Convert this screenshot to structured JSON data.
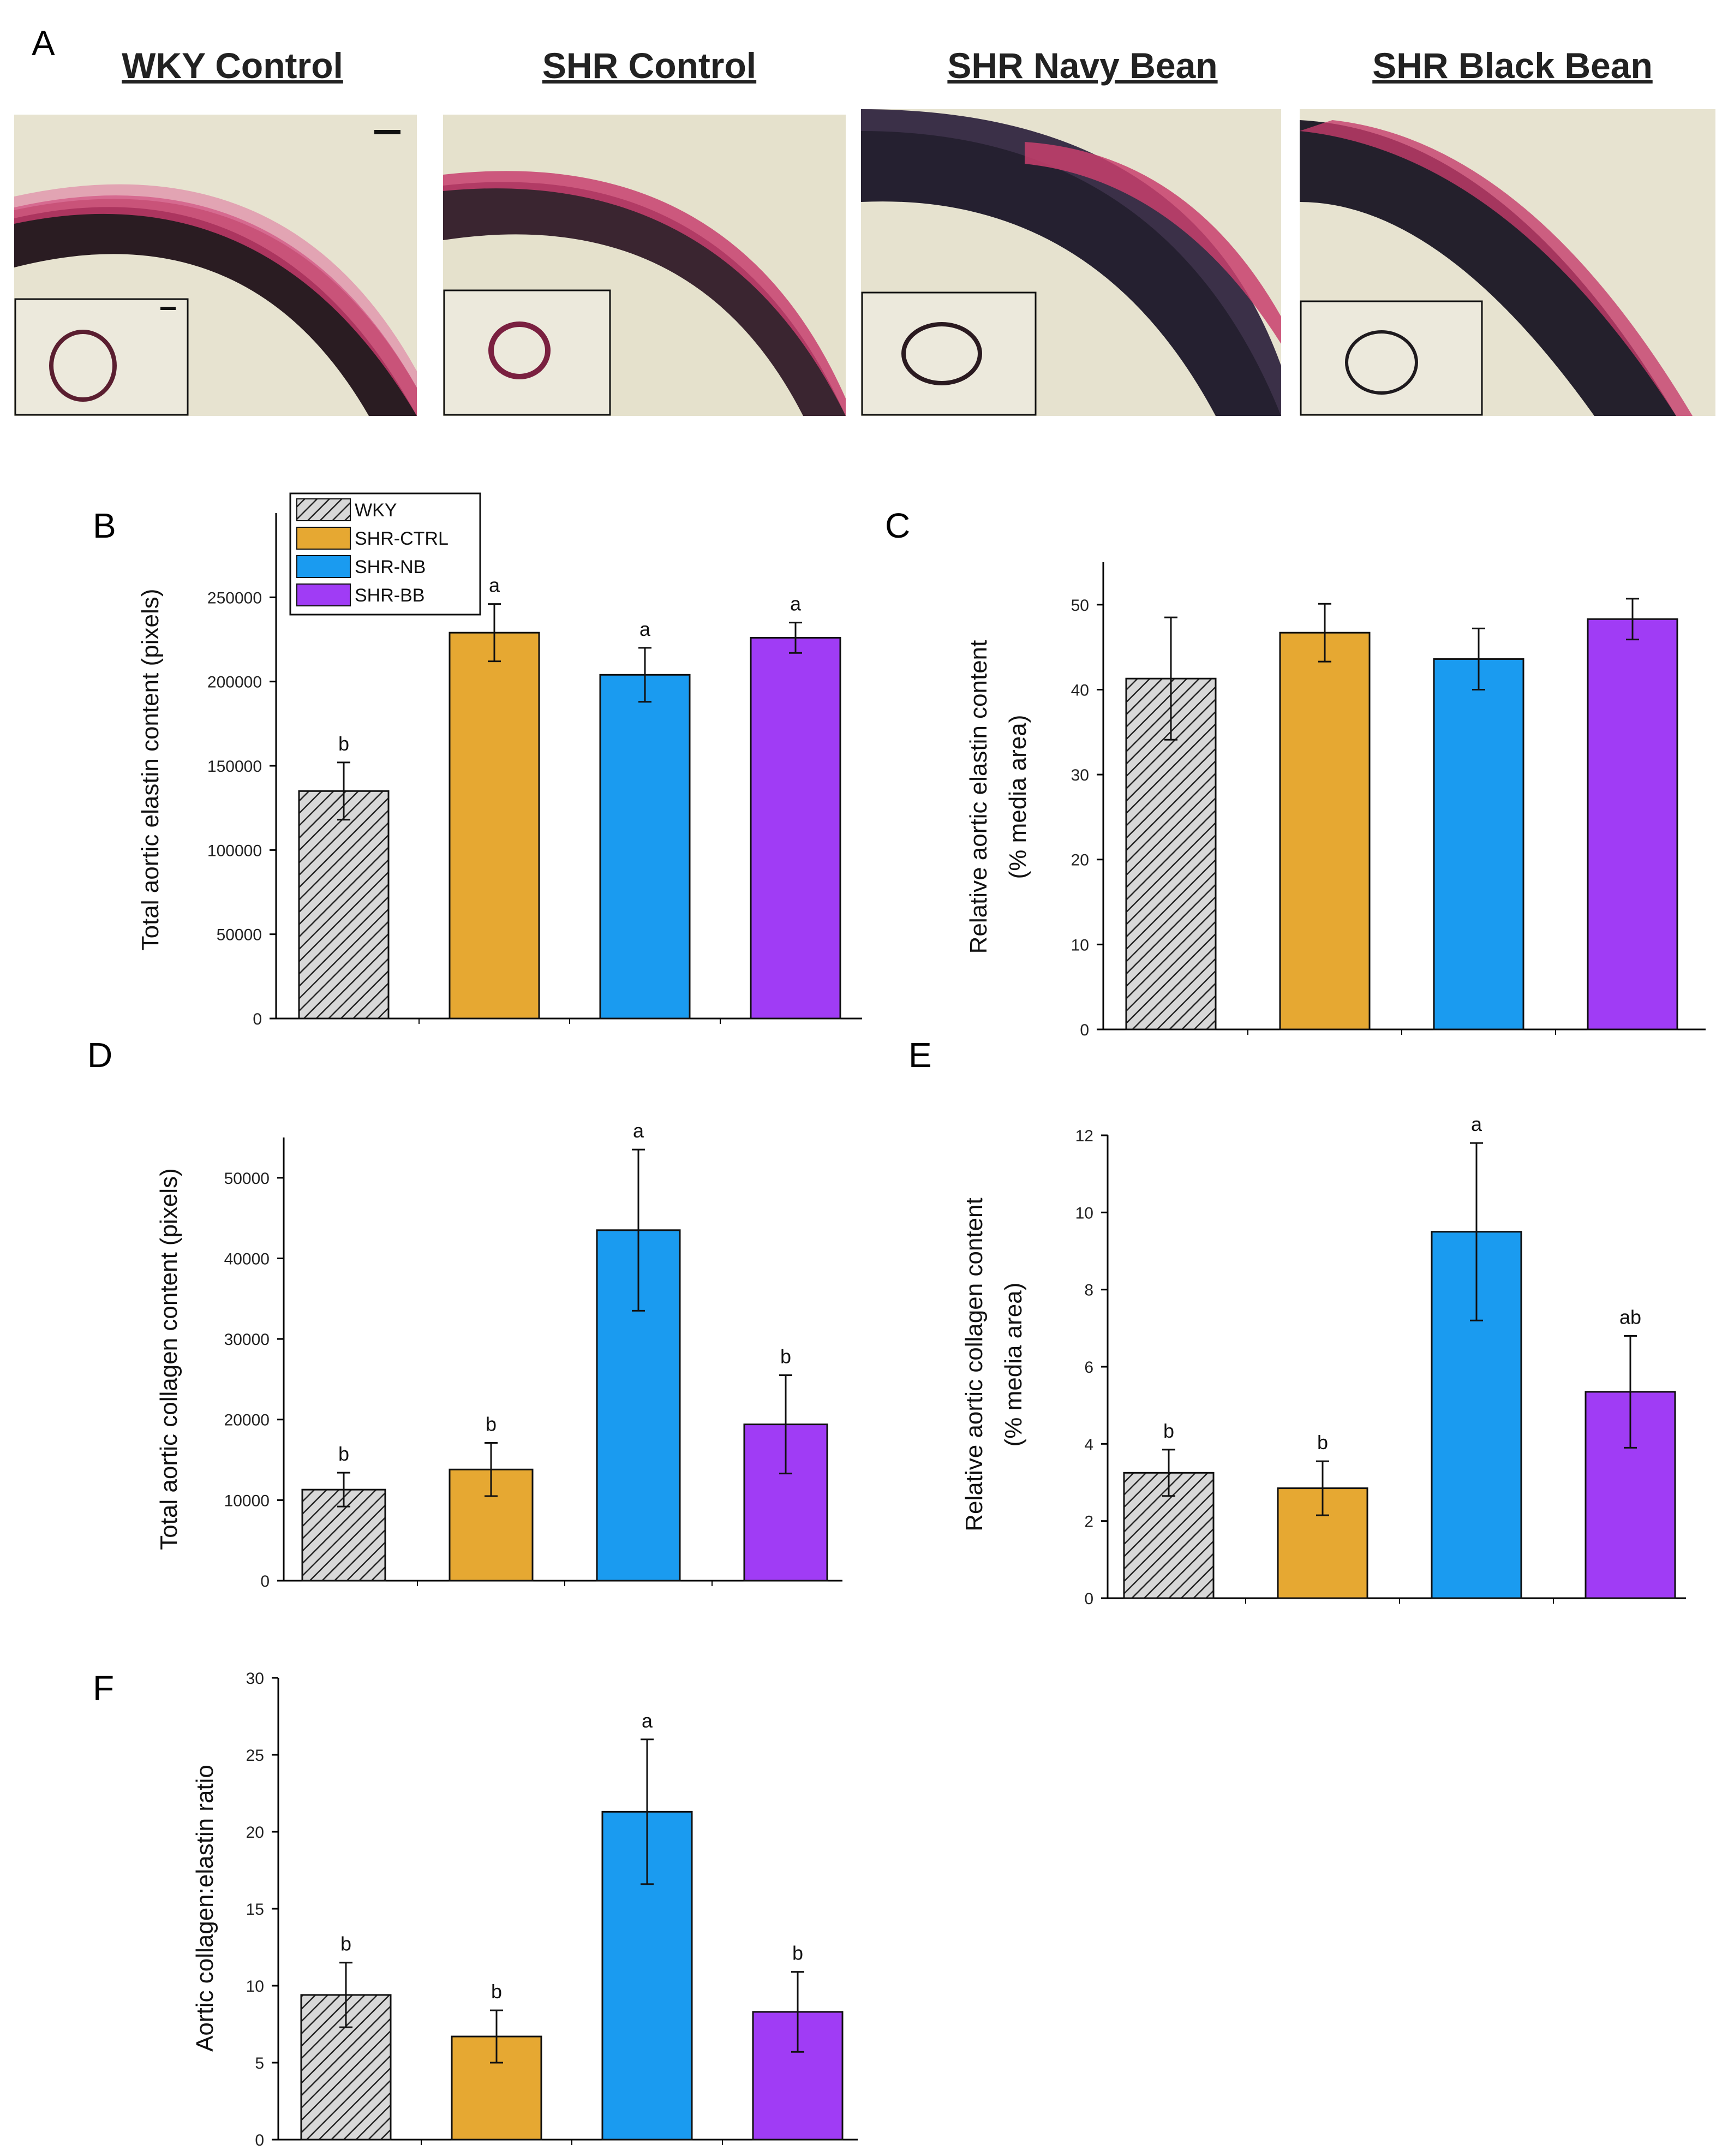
{
  "panel_a": {
    "letter": "A",
    "titles": [
      "WKY Control",
      "SHR Control",
      "SHR Navy Bean",
      "SHR Black Bean"
    ]
  },
  "legend": {
    "entries": [
      {
        "label": "WKY",
        "color": "#d8d8d8",
        "pattern": "hatch"
      },
      {
        "label": "SHR-CTRL",
        "color": "#e6a832"
      },
      {
        "label": "SHR-NB",
        "color": "#1a9bf0"
      },
      {
        "label": "SHR-BB",
        "color": "#a03cf5"
      }
    ]
  },
  "colors": {
    "WKY": "#d8d8d8",
    "SHR-CTRL": "#e6a832",
    "SHR-NB": "#1a9bf0",
    "SHR-BB": "#a03cf5",
    "axis": "#000000"
  },
  "chart_data": [
    {
      "id": "B",
      "type": "bar",
      "categories": [
        "WKY",
        "SHR-CTRL",
        "SHR-NB",
        "SHR-BB"
      ],
      "values": [
        135000,
        229000,
        204000,
        226000
      ],
      "errors": [
        17000,
        17000,
        16000,
        9000
      ],
      "labels": [
        "b",
        "a",
        "a",
        "a"
      ],
      "ylabel": "Total aortic elastin content (pixels)",
      "ylim": [
        0,
        300000
      ],
      "yticks": [
        0,
        50000,
        100000,
        150000,
        200000,
        250000
      ],
      "legend": true
    },
    {
      "id": "C",
      "type": "bar",
      "categories": [
        "WKY",
        "SHR-CTRL",
        "SHR-NB",
        "SHR-BB"
      ],
      "values": [
        41.3,
        46.7,
        43.6,
        48.3
      ],
      "errors": [
        7.2,
        3.4,
        3.6,
        2.4
      ],
      "labels": [
        "",
        "",
        "",
        ""
      ],
      "ylabel": [
        "Relative aortic elastin content",
        "(% media area)"
      ],
      "ylim": [
        0,
        55
      ],
      "yticks": [
        0,
        10,
        20,
        30,
        40,
        50
      ]
    },
    {
      "id": "D",
      "type": "bar",
      "categories": [
        "WKY",
        "SHR-CTRL",
        "SHR-NB",
        "SHR-BB"
      ],
      "values": [
        11300,
        13800,
        43500,
        19400
      ],
      "errors": [
        2100,
        3300,
        10000,
        6100
      ],
      "labels": [
        "b",
        "b",
        "a",
        "b"
      ],
      "ylabel": "Total aortic collagen content (pixels)",
      "ylim": [
        0,
        55000
      ],
      "yticks": [
        0,
        10000,
        20000,
        30000,
        40000,
        50000
      ]
    },
    {
      "id": "E",
      "type": "bar",
      "categories": [
        "WKY",
        "SHR-CTRL",
        "SHR-NB",
        "SHR-BB"
      ],
      "values": [
        3.25,
        2.85,
        9.5,
        5.35
      ],
      "errors": [
        0.6,
        0.7,
        2.3,
        1.45
      ],
      "labels": [
        "b",
        "b",
        "a",
        "ab"
      ],
      "ylabel": [
        "Relative aortic collagen content",
        "(% media area)"
      ],
      "ylim": [
        0,
        12
      ],
      "yticks": [
        0,
        2,
        4,
        6,
        8,
        10,
        12
      ]
    },
    {
      "id": "F",
      "type": "bar",
      "categories": [
        "WKY",
        "SHR-CTRL",
        "SHR-NB",
        "SHR-BB"
      ],
      "values": [
        9.4,
        6.7,
        21.3,
        8.3
      ],
      "errors": [
        2.1,
        1.7,
        4.7,
        2.6
      ],
      "labels": [
        "b",
        "b",
        "a",
        "b"
      ],
      "ylabel": "Aortic collagen:elastin ratio",
      "ylim": [
        0,
        30
      ],
      "yticks": [
        0,
        5,
        10,
        15,
        20,
        25,
        30
      ]
    }
  ]
}
